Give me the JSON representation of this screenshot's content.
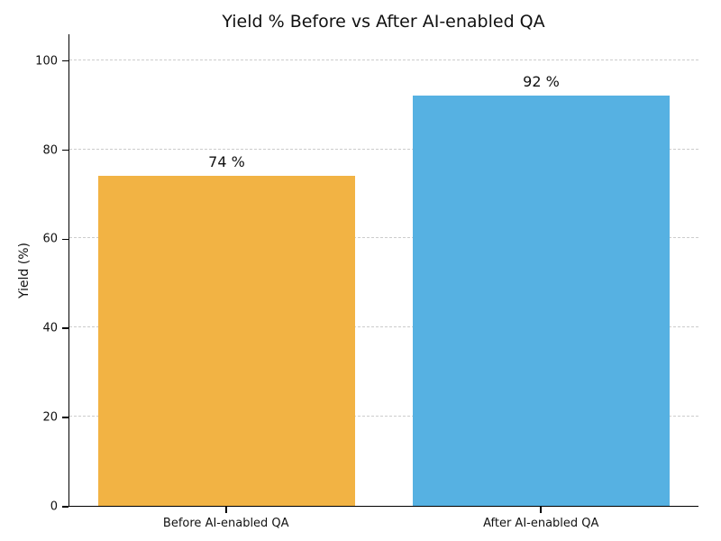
{
  "chart_data": {
    "type": "bar",
    "title": "Yield % Before vs After AI-enabled QA",
    "xlabel": "",
    "ylabel": "Yield (%)",
    "categories": [
      "Before AI-enabled QA",
      "After AI-enabled QA"
    ],
    "values": [
      74,
      92
    ],
    "value_labels": [
      "74 %",
      "92 %"
    ],
    "bar_colors": [
      "#F2B344",
      "#56B1E2"
    ],
    "yticks": [
      0,
      20,
      40,
      60,
      80,
      100
    ],
    "ylim": [
      0,
      106
    ],
    "grid": "horizontal dashed gridlines at each y tick",
    "grid_color": "#cccccc",
    "spine_color": "#000000",
    "text_color": "#111111",
    "legend": "none"
  }
}
